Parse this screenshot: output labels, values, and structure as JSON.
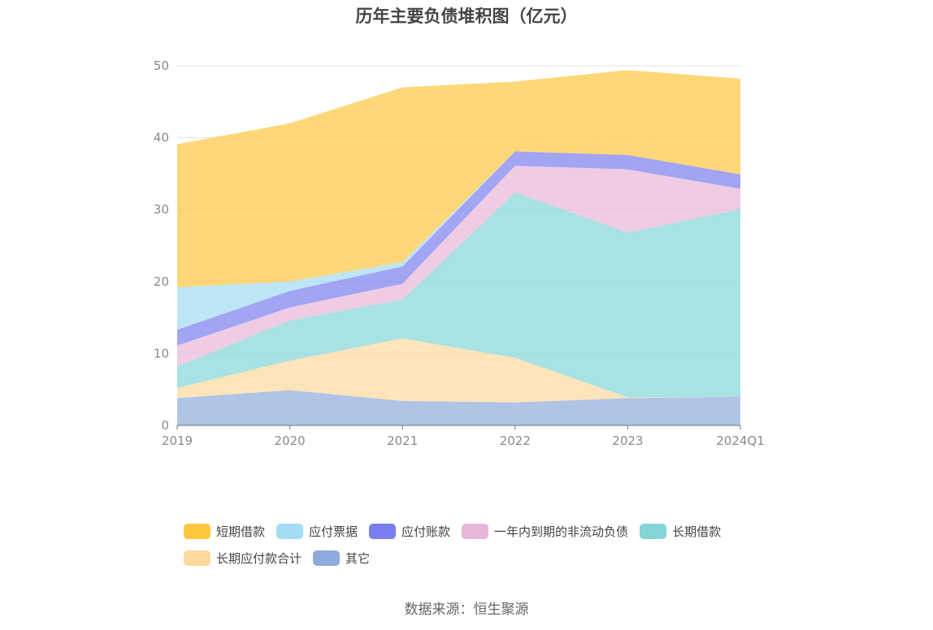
{
  "chart_data": {
    "type": "area",
    "stacked": true,
    "title": "历年主要负债堆积图（亿元）",
    "source": "数据来源：恒生聚源",
    "categories": [
      "2019",
      "2020",
      "2021",
      "2022",
      "2023",
      "2024Q1"
    ],
    "ylim": [
      0,
      50
    ],
    "yticks": [
      0,
      10,
      20,
      30,
      40,
      50
    ],
    "grid": true,
    "legend_position": "bottom",
    "series": [
      {
        "name": "其它",
        "color": "#8fabdc",
        "values": [
          3.8,
          4.9,
          3.4,
          3.2,
          3.8,
          4.0
        ]
      },
      {
        "name": "长期应付款合计",
        "color": "#fdd99c",
        "values": [
          1.4,
          4.1,
          8.7,
          6.2,
          0.1,
          0.0
        ]
      },
      {
        "name": "长期借款",
        "color": "#83d5d6",
        "values": [
          3.0,
          5.6,
          5.4,
          23.0,
          22.9,
          26.1
        ]
      },
      {
        "name": "一年内到期的非流动负债",
        "color": "#e8b6d9",
        "values": [
          2.9,
          1.8,
          2.2,
          3.7,
          8.8,
          2.8
        ]
      },
      {
        "name": "应付账款",
        "color": "#7b7ef0",
        "values": [
          2.2,
          2.3,
          2.4,
          2.0,
          2.0,
          2.0
        ]
      },
      {
        "name": "应付票据",
        "color": "#a3dcf4",
        "values": [
          5.9,
          1.3,
          0.6,
          0.0,
          0.0,
          0.0
        ]
      },
      {
        "name": "短期借款",
        "color": "#fec73e",
        "values": [
          19.9,
          22.0,
          24.3,
          9.7,
          11.8,
          13.3
        ]
      }
    ]
  },
  "legend_rows": [
    [
      "短期借款",
      "应付票据",
      "应付账款",
      "一年内到期的非流动负债",
      "长期借款"
    ],
    [
      "长期应付款合计",
      "其它"
    ]
  ]
}
